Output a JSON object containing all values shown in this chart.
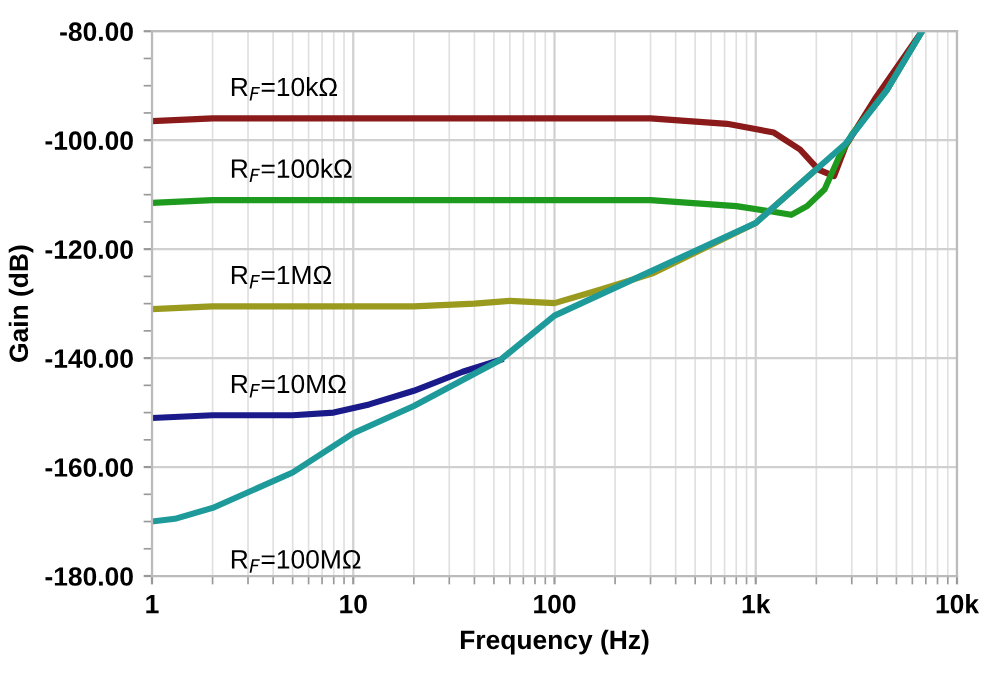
{
  "chart_data": {
    "type": "line",
    "xlabel": "Frequency (Hz)",
    "ylabel": "Gain (dB)",
    "log": "x",
    "grid": true,
    "legend": false,
    "marker": "none",
    "line_style": "solid",
    "xlim": [
      1,
      10000
    ],
    "xticks": [
      1,
      10,
      100,
      {
        "value": 1000,
        "label": "1k"
      },
      {
        "value": 10000,
        "label": "10k"
      }
    ],
    "ylim": [
      -180,
      -80
    ],
    "yticks": [
      {
        "value": -180,
        "label": "-180.00"
      },
      {
        "value": -160,
        "label": "-160.00"
      },
      {
        "value": -140,
        "label": "-140.00"
      },
      {
        "value": -120,
        "label": "-120.00"
      },
      {
        "value": -100,
        "label": "-100.00"
      },
      {
        "value": -80,
        "label": "-80.00"
      }
    ],
    "series": [
      {
        "name": "R$_{F}$=10kΩ",
        "color": "#8b1a1a",
        "x": [
          1,
          2,
          300,
          720,
          1230,
          1660,
          2050,
          2450,
          2800,
          3900,
          6700
        ],
        "values": [
          -96.5,
          -96,
          -96,
          -97,
          -98.6,
          -101.7,
          -105.4,
          -106.6,
          -101,
          -92.5,
          -80
        ]
      },
      {
        "name": "R$_{F}$=100kΩ",
        "color": "#1e9a1e",
        "x": [
          1,
          2,
          300,
          800,
          1200,
          1500,
          1800,
          2200,
          2600,
          3000,
          4500,
          6700
        ],
        "values": [
          -111.5,
          -111,
          -111,
          -112.1,
          -113.1,
          -113.7,
          -112.1,
          -109,
          -103,
          -99,
          -90.7,
          -80
        ]
      },
      {
        "name": "R$_{F}$=1MΩ",
        "color": "#9a9a1e",
        "x": [
          1,
          2,
          20,
          40,
          60,
          100,
          170,
          310,
          1000,
          1950
        ],
        "values": [
          -131,
          -130.5,
          -130.5,
          -130,
          -129.5,
          -129.9,
          -127.4,
          -124.4,
          -115.2,
          -105.7
        ]
      },
      {
        "name": "R$_{F}$=10MΩ",
        "color": "#1a1a8b",
        "x": [
          1,
          2,
          5,
          8,
          12,
          20,
          35,
          54
        ],
        "values": [
          -151,
          -150.5,
          -150.5,
          -150,
          -148.5,
          -146,
          -142.5,
          -140.3
        ]
      },
      {
        "name": "R$_{F}$=100MΩ",
        "color": "#1e9a9a",
        "x": [
          1,
          1.3,
          2,
          5,
          10,
          20,
          54,
          100,
          1000,
          1950,
          2800,
          4500,
          6700
        ],
        "values": [
          -170,
          -169.5,
          -167.5,
          -161,
          -153.8,
          -148.8,
          -140.3,
          -132.2,
          -115.2,
          -105.7,
          -100.6,
          -90.7,
          -80
        ]
      }
    ]
  }
}
